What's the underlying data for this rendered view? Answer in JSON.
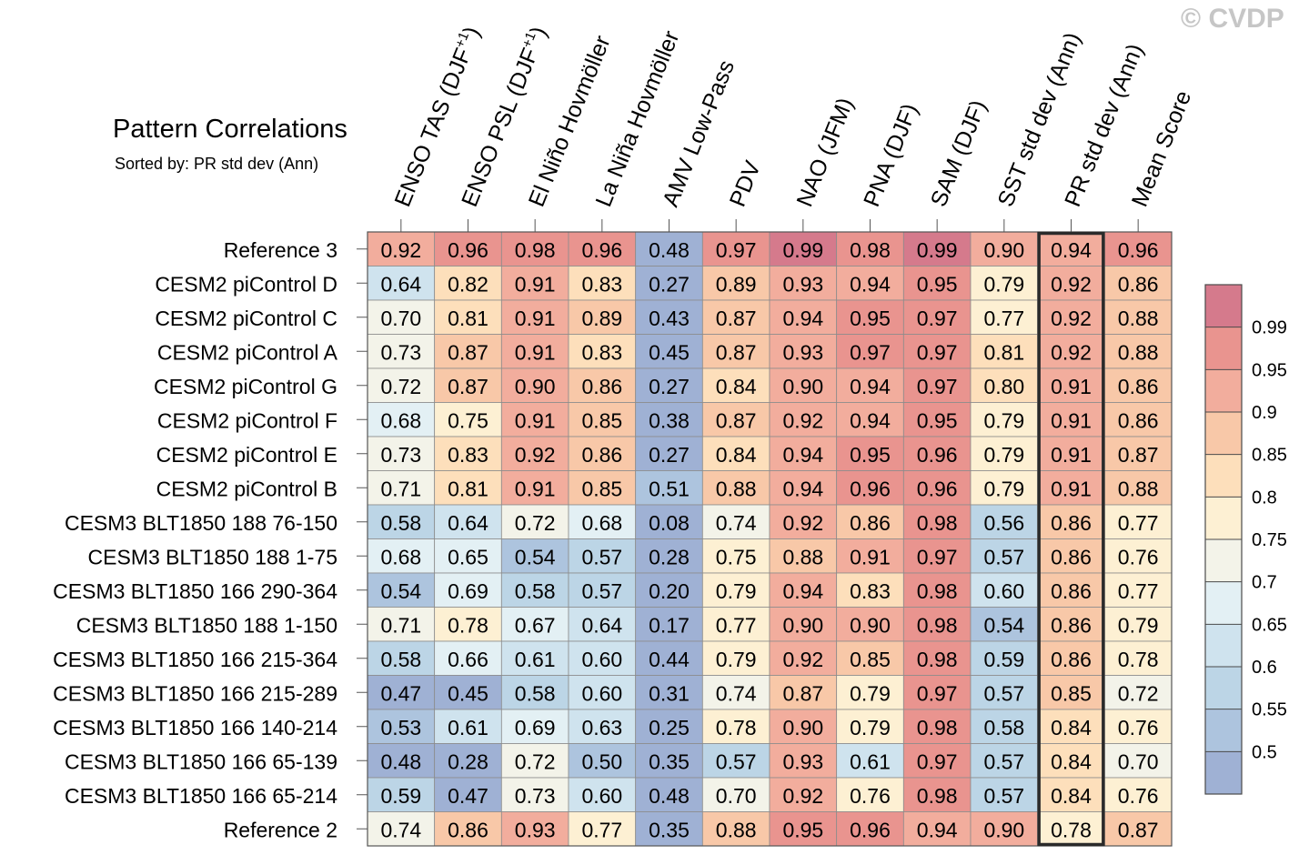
{
  "watermark": "© CVDP",
  "chart_data": {
    "type": "heatmap",
    "title": "Pattern Correlations",
    "subtitle": "Sorted by: PR std dev (Ann)",
    "highlight_column": "PR std dev (Ann)",
    "columns": [
      "ENSO TAS (DJF+1)",
      "ENSO PSL (DJF+1)",
      "El Niño Hovmöller",
      "La Niña Hovmöller",
      "AMV Low-Pass",
      "PDV",
      "NAO (JFM)",
      "PNA (DJF)",
      "SAM (DJF)",
      "SST std dev (Ann)",
      "PR std dev (Ann)",
      "Mean Score"
    ],
    "rows": [
      {
        "label": "Reference 3",
        "values": [
          "0.92",
          "0.96",
          "0.98",
          "0.96",
          "0.48",
          "0.97",
          "0.99",
          "0.98",
          "0.99",
          "0.90",
          "0.94",
          "0.96"
        ]
      },
      {
        "label": "CESM2 piControl D",
        "values": [
          "0.64",
          "0.82",
          "0.91",
          "0.83",
          "0.27",
          "0.89",
          "0.93",
          "0.94",
          "0.95",
          "0.79",
          "0.92",
          "0.86"
        ]
      },
      {
        "label": "CESM2 piControl C",
        "values": [
          "0.70",
          "0.81",
          "0.91",
          "0.89",
          "0.43",
          "0.87",
          "0.94",
          "0.95",
          "0.97",
          "0.77",
          "0.92",
          "0.88"
        ]
      },
      {
        "label": "CESM2 piControl A",
        "values": [
          "0.73",
          "0.87",
          "0.91",
          "0.83",
          "0.45",
          "0.87",
          "0.93",
          "0.97",
          "0.97",
          "0.81",
          "0.92",
          "0.88"
        ]
      },
      {
        "label": "CESM2 piControl G",
        "values": [
          "0.72",
          "0.87",
          "0.90",
          "0.86",
          "0.27",
          "0.84",
          "0.90",
          "0.94",
          "0.97",
          "0.80",
          "0.91",
          "0.86"
        ]
      },
      {
        "label": "CESM2 piControl F",
        "values": [
          "0.68",
          "0.75",
          "0.91",
          "0.85",
          "0.38",
          "0.87",
          "0.92",
          "0.94",
          "0.95",
          "0.79",
          "0.91",
          "0.86"
        ]
      },
      {
        "label": "CESM2 piControl E",
        "values": [
          "0.73",
          "0.83",
          "0.92",
          "0.86",
          "0.27",
          "0.84",
          "0.94",
          "0.95",
          "0.96",
          "0.79",
          "0.91",
          "0.87"
        ]
      },
      {
        "label": "CESM2 piControl B",
        "values": [
          "0.71",
          "0.81",
          "0.91",
          "0.85",
          "0.51",
          "0.88",
          "0.94",
          "0.96",
          "0.96",
          "0.79",
          "0.91",
          "0.88"
        ]
      },
      {
        "label": "CESM3 BLT1850 188 76-150",
        "values": [
          "0.58",
          "0.64",
          "0.72",
          "0.68",
          "0.08",
          "0.74",
          "0.92",
          "0.86",
          "0.98",
          "0.56",
          "0.86",
          "0.77"
        ]
      },
      {
        "label": "CESM3 BLT1850 188 1-75",
        "values": [
          "0.68",
          "0.65",
          "0.54",
          "0.57",
          "0.28",
          "0.75",
          "0.88",
          "0.91",
          "0.97",
          "0.57",
          "0.86",
          "0.76"
        ]
      },
      {
        "label": "CESM3 BLT1850 166 290-364",
        "values": [
          "0.54",
          "0.69",
          "0.58",
          "0.57",
          "0.20",
          "0.79",
          "0.94",
          "0.83",
          "0.98",
          "0.60",
          "0.86",
          "0.77"
        ]
      },
      {
        "label": "CESM3 BLT1850 188 1-150",
        "values": [
          "0.71",
          "0.78",
          "0.67",
          "0.64",
          "0.17",
          "0.77",
          "0.90",
          "0.90",
          "0.98",
          "0.54",
          "0.86",
          "0.79"
        ]
      },
      {
        "label": "CESM3 BLT1850 166 215-364",
        "values": [
          "0.58",
          "0.66",
          "0.61",
          "0.60",
          "0.44",
          "0.79",
          "0.92",
          "0.85",
          "0.98",
          "0.59",
          "0.86",
          "0.78"
        ]
      },
      {
        "label": "CESM3 BLT1850 166 215-289",
        "values": [
          "0.47",
          "0.45",
          "0.58",
          "0.60",
          "0.31",
          "0.74",
          "0.87",
          "0.79",
          "0.97",
          "0.57",
          "0.85",
          "0.72"
        ]
      },
      {
        "label": "CESM3 BLT1850 166 140-214",
        "values": [
          "0.53",
          "0.61",
          "0.69",
          "0.63",
          "0.25",
          "0.78",
          "0.90",
          "0.79",
          "0.98",
          "0.58",
          "0.84",
          "0.76"
        ]
      },
      {
        "label": "CESM3 BLT1850 166 65-139",
        "values": [
          "0.48",
          "0.28",
          "0.72",
          "0.50",
          "0.35",
          "0.57",
          "0.93",
          "0.61",
          "0.97",
          "0.57",
          "0.84",
          "0.70"
        ]
      },
      {
        "label": "CESM3 BLT1850 166 65-214",
        "values": [
          "0.59",
          "0.47",
          "0.73",
          "0.60",
          "0.48",
          "0.70",
          "0.92",
          "0.76",
          "0.98",
          "0.57",
          "0.84",
          "0.76"
        ]
      },
      {
        "label": "Reference 2",
        "values": [
          "0.74",
          "0.86",
          "0.93",
          "0.77",
          "0.35",
          "0.88",
          "0.95",
          "0.96",
          "0.94",
          "0.90",
          "0.78",
          "0.87"
        ]
      }
    ],
    "colorbar": {
      "ticks": [
        "0.5",
        "0.55",
        "0.6",
        "0.65",
        "0.7",
        "0.75",
        "0.8",
        "0.85",
        "0.9",
        "0.95",
        "0.99"
      ],
      "bins": [
        {
          "max": 0.5,
          "color": "#9fb1d4"
        },
        {
          "max": 0.55,
          "color": "#adc4de"
        },
        {
          "max": 0.6,
          "color": "#bcd5e6"
        },
        {
          "max": 0.65,
          "color": "#cfe3ee"
        },
        {
          "max": 0.7,
          "color": "#e3f0f4"
        },
        {
          "max": 0.75,
          "color": "#f3f3e9"
        },
        {
          "max": 0.8,
          "color": "#fdf0d3"
        },
        {
          "max": 0.85,
          "color": "#fddfbb"
        },
        {
          "max": 0.9,
          "color": "#f8c8a8"
        },
        {
          "max": 0.95,
          "color": "#f2ad9d"
        },
        {
          "max": 0.99,
          "color": "#e9948f"
        },
        {
          "max": 1.0,
          "color": "#d57a8c"
        }
      ]
    }
  }
}
